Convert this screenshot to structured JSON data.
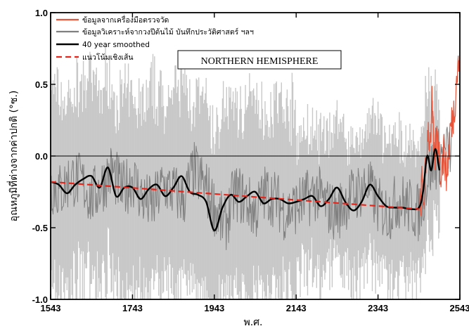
{
  "chart_data": {
    "type": "line",
    "title": "",
    "xlabel": "พ.ศ.",
    "ylabel": "อุณหภูมิที่ต่างจากค่าปกติ (°ซ.)",
    "xlim": [
      1543,
      2543
    ],
    "ylim": [
      -1.0,
      1.0
    ],
    "x_ticks": [
      "1543",
      "1743",
      "1943",
      "2143",
      "2343",
      "2543"
    ],
    "y_ticks": [
      "1.0",
      "0.5",
      "0.0",
      "-0.5",
      "-1.0"
    ],
    "zero_line": 0.0,
    "annotation": "NORTHERN HEMISPHERE",
    "legend_position": "top-left",
    "colors": {
      "instrumental": "#e8553a",
      "proxy": "#808080",
      "uncertainty": "#c8c8c8",
      "smoothed": "#000000",
      "trend": "#e8251a"
    },
    "series": [
      {
        "name": "ข้อมูลจากเครื่องมือตรวจวัด",
        "style": "solid-thin",
        "x": [
          2445,
          2450,
          2455,
          2460,
          2465,
          2470,
          2475,
          2480,
          2485,
          2490,
          2495,
          2500,
          2505,
          2510,
          2515,
          2520,
          2525,
          2530,
          2535,
          2541
        ],
        "y": [
          -0.4,
          -0.2,
          -0.3,
          -0.1,
          0.2,
          0.1,
          0.35,
          -0.05,
          0.1,
          0.15,
          -0.1,
          -0.05,
          0.05,
          -0.15,
          0.0,
          0.2,
          0.25,
          0.35,
          0.55,
          0.65
        ]
      },
      {
        "name": "ข้อมูลวิเคราะห์จากวงปีต้นไม้ บันทึกประวัติศาสตร์ ฯลฯ",
        "style": "solid-gray",
        "x": [
          1543,
          1568,
          1593,
          1618,
          1643,
          1668,
          1693,
          1718,
          1743,
          1768,
          1793,
          1818,
          1843,
          1868,
          1893,
          1918,
          1943,
          1968,
          1993,
          2018,
          2043,
          2068,
          2093,
          2118,
          2143,
          2168,
          2193,
          2218,
          2243,
          2268,
          2293,
          2318,
          2343,
          2368,
          2393,
          2418,
          2443,
          2468,
          2493,
          2523
        ],
        "y": [
          -0.2,
          -0.25,
          -0.15,
          -0.18,
          -0.3,
          -0.2,
          -0.1,
          -0.25,
          -0.15,
          -0.3,
          -0.35,
          -0.2,
          -0.25,
          -0.3,
          -0.1,
          -0.2,
          -0.35,
          -0.5,
          -0.25,
          -0.3,
          -0.4,
          -0.25,
          -0.3,
          -0.4,
          -0.35,
          -0.3,
          -0.25,
          -0.35,
          -0.4,
          -0.3,
          -0.25,
          -0.2,
          -0.35,
          -0.4,
          -0.3,
          -0.35,
          -0.4,
          -0.1,
          0.0,
          0.05
        ]
      },
      {
        "name": "40 year smoothed",
        "style": "solid-thick",
        "x": [
          1543,
          1563,
          1583,
          1603,
          1623,
          1643,
          1663,
          1683,
          1703,
          1723,
          1743,
          1763,
          1783,
          1803,
          1823,
          1843,
          1863,
          1883,
          1903,
          1923,
          1943,
          1963,
          1983,
          2003,
          2023,
          2043,
          2063,
          2083,
          2103,
          2123,
          2143,
          2163,
          2183,
          2203,
          2223,
          2243,
          2263,
          2283,
          2303,
          2323,
          2343,
          2363,
          2383,
          2403,
          2423,
          2443,
          2453,
          2463,
          2473,
          2483,
          2493
        ],
        "y": [
          -0.18,
          -0.2,
          -0.26,
          -0.2,
          -0.16,
          -0.14,
          -0.22,
          -0.08,
          -0.28,
          -0.22,
          -0.22,
          -0.3,
          -0.23,
          -0.2,
          -0.28,
          -0.22,
          -0.14,
          -0.25,
          -0.27,
          -0.32,
          -0.52,
          -0.36,
          -0.27,
          -0.32,
          -0.28,
          -0.25,
          -0.33,
          -0.3,
          -0.3,
          -0.33,
          -0.32,
          -0.3,
          -0.28,
          -0.35,
          -0.3,
          -0.22,
          -0.32,
          -0.38,
          -0.32,
          -0.2,
          -0.28,
          -0.35,
          -0.36,
          -0.36,
          -0.37,
          -0.36,
          -0.25,
          0.0,
          -0.1,
          0.05,
          -0.1
        ]
      },
      {
        "name": "แนวโน้มเชิงเส้น",
        "style": "dashed",
        "x": [
          1543,
          2443
        ],
        "y": [
          -0.18,
          -0.37
        ]
      }
    ]
  }
}
